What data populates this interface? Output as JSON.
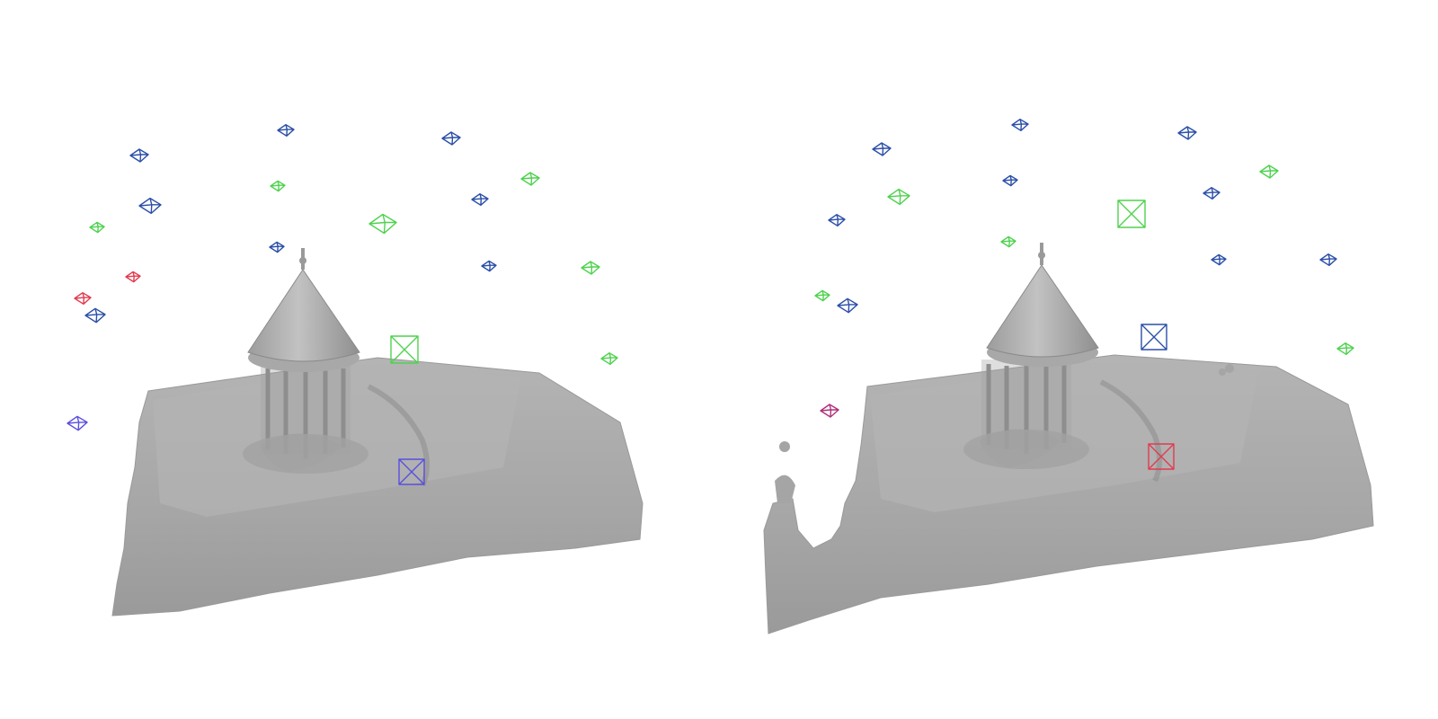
{
  "scene": {
    "description_visible_text": "",
    "mesh_color": "#a9a9a9",
    "colors": {
      "blue": "#2b4fa8",
      "green": "#4fd24f",
      "red": "#e23b4f",
      "violet": "#5a4fe0",
      "magenta": "#b0307a"
    },
    "panels": [
      {
        "id": "left",
        "camera_icons": [
          {
            "color": "blue",
            "kind": "pyramid"
          },
          {
            "color": "blue",
            "kind": "pyramid"
          },
          {
            "color": "blue",
            "kind": "pyramid"
          },
          {
            "color": "green",
            "kind": "pyramid"
          },
          {
            "color": "green",
            "kind": "pyramid"
          },
          {
            "color": "blue",
            "kind": "pyramid"
          },
          {
            "color": "green",
            "kind": "pyramid"
          },
          {
            "color": "blue",
            "kind": "pyramid"
          },
          {
            "color": "green",
            "kind": "pyramid"
          },
          {
            "color": "blue",
            "kind": "pyramid"
          },
          {
            "color": "red",
            "kind": "pyramid"
          },
          {
            "color": "red",
            "kind": "pyramid"
          },
          {
            "color": "blue",
            "kind": "pyramid"
          },
          {
            "color": "blue",
            "kind": "pyramid"
          },
          {
            "color": "green",
            "kind": "pyramid"
          },
          {
            "color": "green",
            "kind": "frustum"
          },
          {
            "color": "green",
            "kind": "pyramid"
          },
          {
            "color": "violet",
            "kind": "pyramid"
          },
          {
            "color": "violet",
            "kind": "frustum"
          }
        ]
      },
      {
        "id": "right",
        "camera_icons": [
          {
            "color": "blue",
            "kind": "pyramid"
          },
          {
            "color": "blue",
            "kind": "pyramid"
          },
          {
            "color": "blue",
            "kind": "pyramid"
          },
          {
            "color": "green",
            "kind": "pyramid"
          },
          {
            "color": "green",
            "kind": "pyramid"
          },
          {
            "color": "blue",
            "kind": "pyramid"
          },
          {
            "color": "green",
            "kind": "frustum"
          },
          {
            "color": "blue",
            "kind": "pyramid"
          },
          {
            "color": "blue",
            "kind": "pyramid"
          },
          {
            "color": "green",
            "kind": "pyramid"
          },
          {
            "color": "blue",
            "kind": "pyramid"
          },
          {
            "color": "blue",
            "kind": "pyramid"
          },
          {
            "color": "green",
            "kind": "pyramid"
          },
          {
            "color": "blue",
            "kind": "pyramid"
          },
          {
            "color": "blue",
            "kind": "frustum"
          },
          {
            "color": "green",
            "kind": "pyramid"
          },
          {
            "color": "magenta",
            "kind": "pyramid"
          },
          {
            "color": "red",
            "kind": "frustum"
          }
        ]
      }
    ]
  }
}
